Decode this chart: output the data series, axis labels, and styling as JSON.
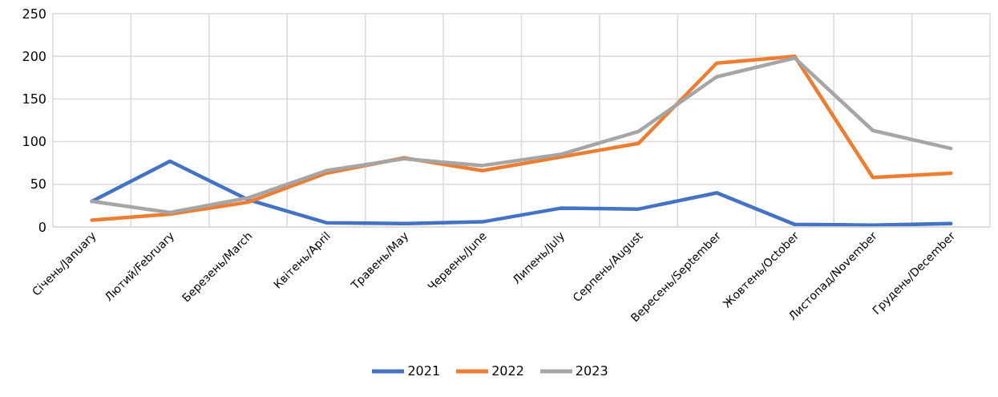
{
  "chart_data": {
    "type": "line",
    "categories": [
      "Січень/January",
      "Лютий/February",
      "Березень/March",
      "Квітень/April",
      "Травень/May",
      "Червень/June",
      "Липень/July",
      "Серпень/August",
      "Вересень/September",
      "Жовтень/October",
      "Листопад/November",
      "Грудень/December"
    ],
    "series": [
      {
        "name": "2021",
        "color": "#4472c4",
        "values": [
          30,
          77,
          32,
          5,
          4,
          6,
          22,
          21,
          40,
          3,
          2,
          4
        ]
      },
      {
        "name": "2022",
        "color": "#ed7d31",
        "values": [
          8,
          15,
          29,
          63,
          81,
          66,
          82,
          98,
          192,
          200,
          58,
          63
        ]
      },
      {
        "name": "2023",
        "color": "#a5a5a5",
        "values": [
          30,
          17,
          34,
          66,
          80,
          72,
          85,
          112,
          176,
          198,
          113,
          92
        ]
      }
    ],
    "ylim": [
      0,
      250
    ],
    "yticks": [
      0,
      50,
      100,
      150,
      200,
      250
    ],
    "grid": true,
    "legend": "bottom",
    "marker": "none",
    "line_style": "solid"
  }
}
